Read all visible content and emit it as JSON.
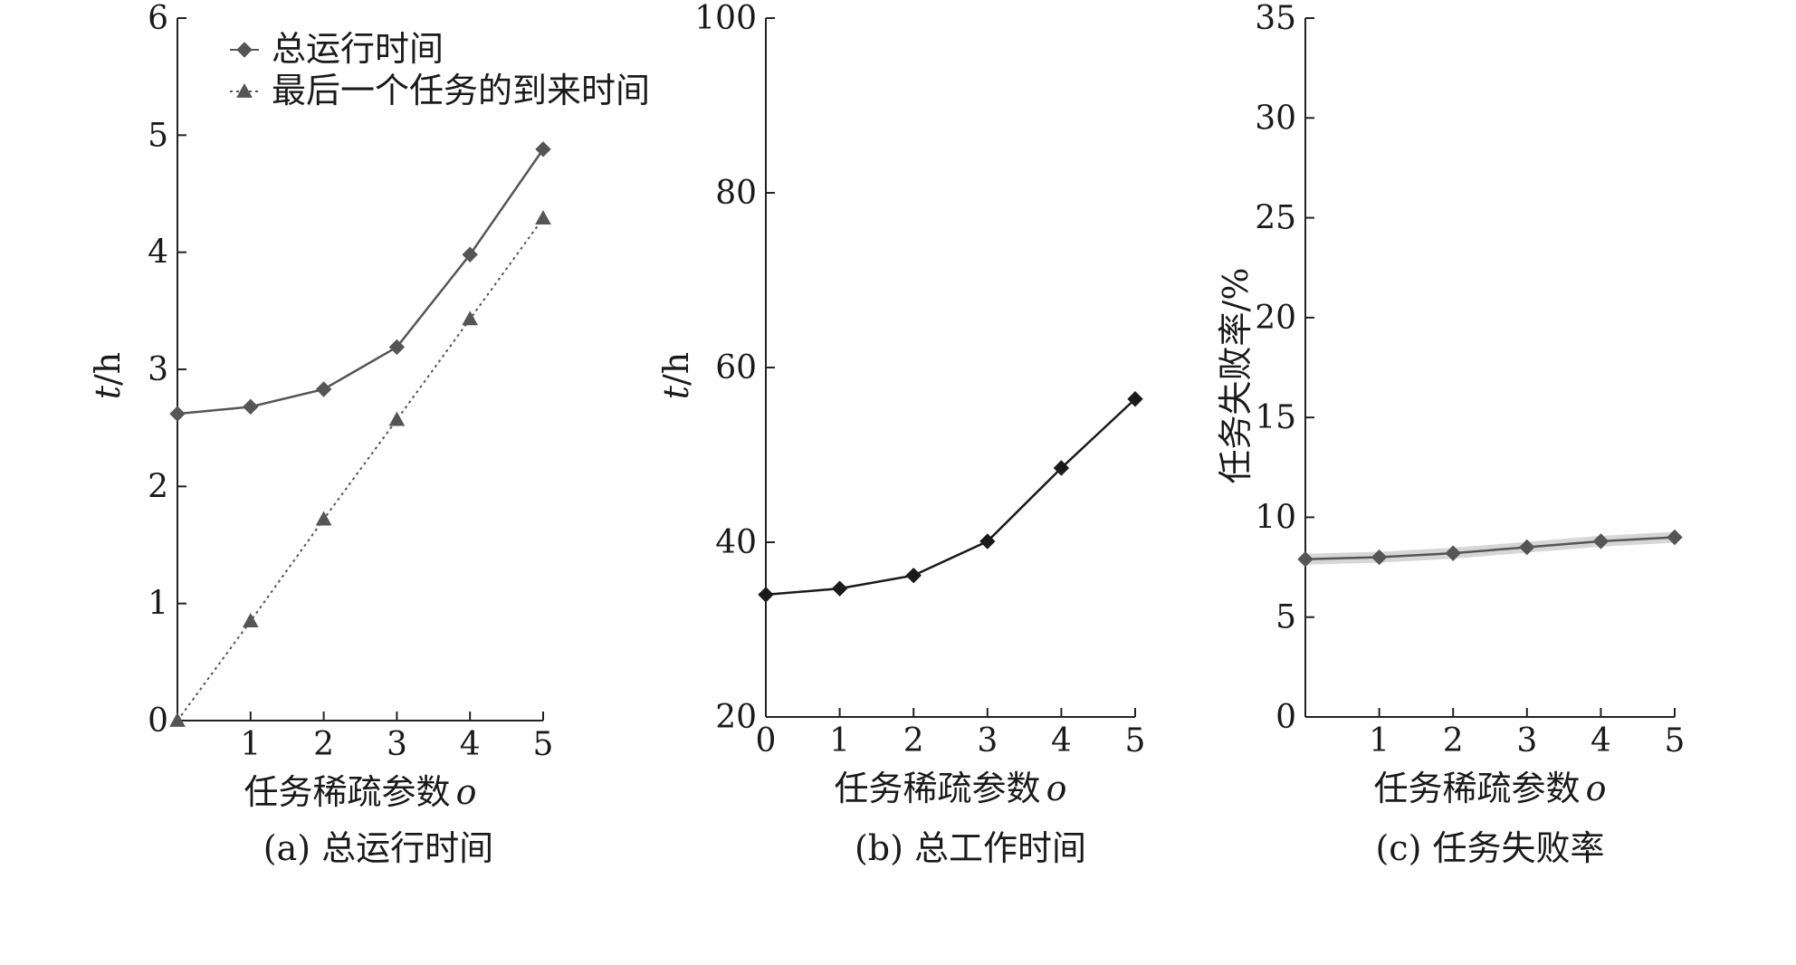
{
  "chart_data": [
    {
      "type": "line",
      "caption": "(a) 总运行时间",
      "xlabel": "任务稀疏参数",
      "xlabel_symbol": "o",
      "ylabel": "t/h",
      "xlim": [
        0,
        5
      ],
      "ylim": [
        0,
        6
      ],
      "x_ticks": [
        "1",
        "2",
        "3",
        "4",
        "5"
      ],
      "y_ticks": [
        "0",
        "1",
        "2",
        "3",
        "4",
        "5",
        "6"
      ],
      "legend_position": "top-left",
      "x": [
        0,
        1,
        2,
        3,
        4,
        5
      ],
      "series": [
        {
          "name": "总运行时间",
          "marker": "diamond",
          "style": "solid",
          "color": "#555555",
          "values": [
            2.62,
            2.68,
            2.83,
            3.19,
            3.98,
            4.88
          ]
        },
        {
          "name": "最后一个任务的到来时间",
          "marker": "triangle",
          "style": "dotted",
          "color": "#555555",
          "values": [
            0.0,
            0.85,
            1.72,
            2.57,
            3.43,
            4.29
          ]
        }
      ]
    },
    {
      "type": "line",
      "caption": "(b) 总工作时间",
      "xlabel": "任务稀疏参数",
      "xlabel_symbol": "o",
      "ylabel": "t/h",
      "xlim": [
        0,
        5
      ],
      "ylim": [
        20,
        100
      ],
      "x_ticks": [
        "0",
        "1",
        "2",
        "3",
        "4",
        "5"
      ],
      "y_ticks": [
        "20",
        "40",
        "60",
        "80",
        "100"
      ],
      "x": [
        0,
        1,
        2,
        3,
        4,
        5
      ],
      "series": [
        {
          "marker": "diamond",
          "style": "solid",
          "color": "#1a1a1a",
          "values": [
            34.0,
            34.7,
            36.2,
            40.1,
            48.5,
            56.4
          ]
        }
      ]
    },
    {
      "type": "line",
      "caption": "(c) 任务失败率",
      "xlabel": "任务稀疏参数",
      "xlabel_symbol": "o",
      "ylabel": "任务失败率/%",
      "xlim": [
        0,
        5
      ],
      "ylim": [
        0,
        35
      ],
      "x_ticks": [
        "1",
        "2",
        "3",
        "4",
        "5"
      ],
      "y_ticks": [
        "0",
        "5",
        "10",
        "15",
        "20",
        "25",
        "30",
        "35"
      ],
      "x": [
        0,
        1,
        2,
        3,
        4,
        5
      ],
      "series": [
        {
          "marker": "diamond",
          "style": "solid",
          "color": "#555555",
          "values": [
            7.9,
            8.0,
            8.2,
            8.5,
            8.8,
            9.0
          ]
        }
      ]
    }
  ]
}
